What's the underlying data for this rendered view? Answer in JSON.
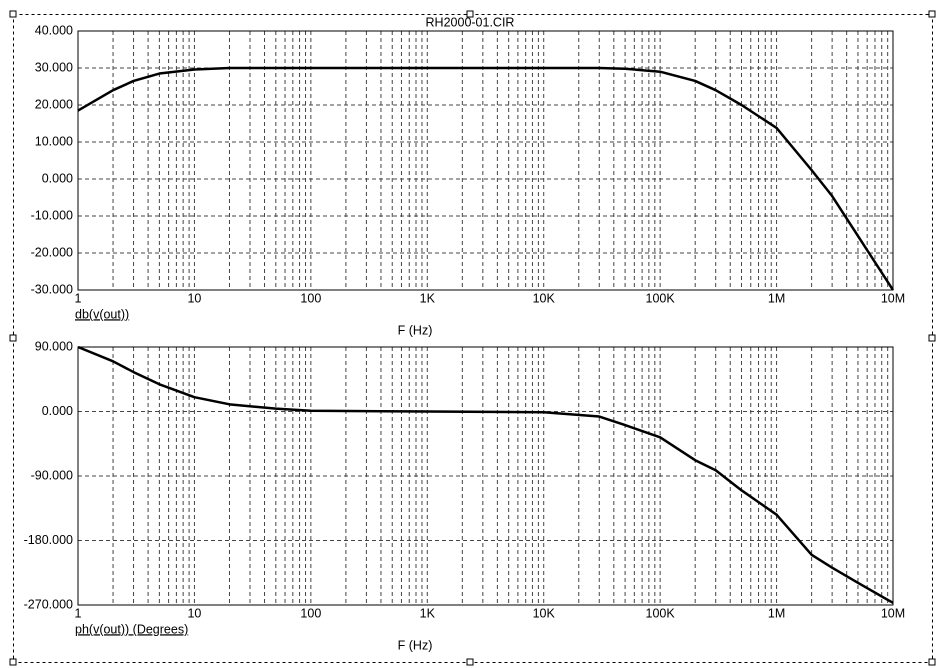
{
  "chart_data": [
    {
      "type": "line",
      "title": "RH2000-01.CIR",
      "xlabel": "F (Hz)",
      "ylabel": "db(v(out))",
      "xlog": true,
      "grid": true,
      "x": [
        1,
        2,
        3,
        5,
        10,
        20,
        50,
        100,
        1000,
        10000,
        30000,
        50000,
        100000,
        200000,
        300000,
        500000,
        1000000,
        2000000,
        3000000,
        5000000,
        10000000
      ],
      "series": [
        {
          "color": "#000000",
          "values": [
            18.5,
            24,
            26.5,
            28.5,
            29.6,
            30,
            30,
            30,
            30,
            30,
            30,
            29.8,
            29,
            26.5,
            24,
            20,
            13.8,
            2.4,
            -4.6,
            -15.4,
            -30
          ]
        }
      ],
      "xlim": [
        1,
        10000000
      ],
      "xticks": [
        1,
        10,
        100,
        {
          "value": 1000,
          "label": "1K"
        },
        {
          "value": 10000,
          "label": "10K"
        },
        {
          "value": 100000,
          "label": "100K"
        },
        {
          "value": 1000000,
          "label": "1M"
        },
        {
          "value": 10000000,
          "label": "10M"
        }
      ],
      "ylim": [
        -30,
        40
      ],
      "yticks": [
        {
          "value": -30,
          "label": "-30.000"
        },
        {
          "value": -20,
          "label": "-20.000"
        },
        {
          "value": -10,
          "label": "-10.000"
        },
        {
          "value": 0,
          "label": "0.000"
        },
        {
          "value": 10,
          "label": "10.000"
        },
        {
          "value": 20,
          "label": "20.000"
        },
        {
          "value": 30,
          "label": "30.000"
        },
        {
          "value": 40,
          "label": "40.000"
        }
      ]
    },
    {
      "type": "line",
      "xlabel": "F (Hz)",
      "ylabel": "ph(v(out)) (Degrees)",
      "xlog": true,
      "grid": true,
      "x": [
        1,
        2,
        3,
        5,
        10,
        20,
        50,
        100,
        1000,
        10000,
        30000,
        50000,
        100000,
        200000,
        300000,
        500000,
        1000000,
        2000000,
        3000000,
        5000000,
        10000000
      ],
      "series": [
        {
          "color": "#000000",
          "values": [
            90,
            70,
            55,
            38,
            20,
            10,
            4,
            1,
            0,
            -1,
            -7,
            -19,
            -36,
            -68,
            -82,
            -110,
            -144,
            -200,
            -218,
            -239,
            -267
          ]
        }
      ],
      "xlim": [
        1,
        10000000
      ],
      "xticks": [
        1,
        10,
        100,
        {
          "value": 1000,
          "label": "1K"
        },
        {
          "value": 10000,
          "label": "10K"
        },
        {
          "value": 100000,
          "label": "100K"
        },
        {
          "value": 1000000,
          "label": "1M"
        },
        {
          "value": 10000000,
          "label": "10M"
        }
      ],
      "ylim": [
        -270,
        90
      ],
      "yticks": [
        {
          "value": -270,
          "label": "-270.000"
        },
        {
          "value": -180,
          "label": "-180.000"
        },
        {
          "value": -90,
          "label": "-90.000"
        },
        {
          "value": 0,
          "label": "0.000"
        },
        {
          "value": 90,
          "label": "90.000"
        }
      ]
    }
  ]
}
